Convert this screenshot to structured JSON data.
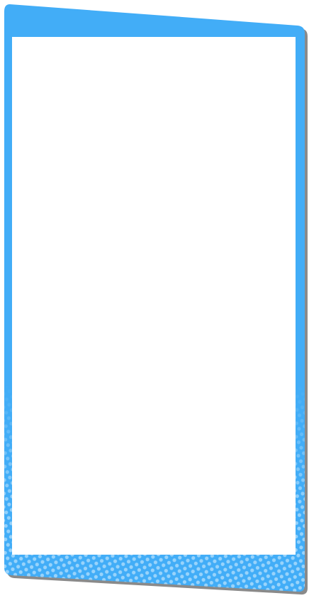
{
  "theme": {
    "frame_color": "#42adf7",
    "frame_dot_color": "#9bd4fb",
    "shadow_color": "#8a8a8a",
    "panel_color": "#ffffff",
    "background_color": "#ffffff"
  },
  "frame": {
    "style": "slanted blue card border with halftone dot fade at bottom",
    "content": ""
  }
}
